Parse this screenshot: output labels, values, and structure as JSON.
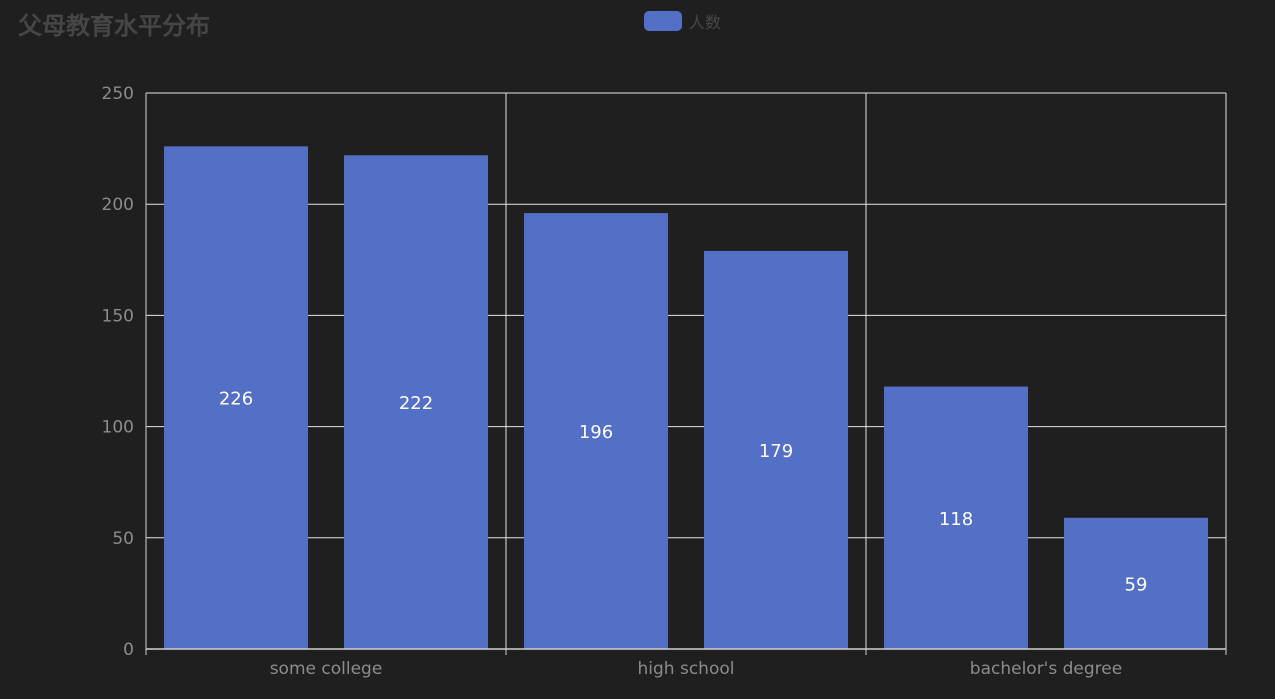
{
  "chart_data": {
    "type": "bar",
    "title": "父母教育水平分布",
    "xlabel": "",
    "ylabel": "",
    "ylim": [
      0,
      250
    ],
    "yticks": [
      0,
      50,
      100,
      150,
      200,
      250
    ],
    "grid": true,
    "legend": "top-center",
    "x_tick_labels": [
      "some college",
      "high school",
      "bachelor's degree"
    ],
    "series": [
      {
        "name": "人数",
        "color": "#5470c6",
        "values": [
          226,
          222,
          196,
          179,
          118,
          59
        ]
      }
    ]
  }
}
